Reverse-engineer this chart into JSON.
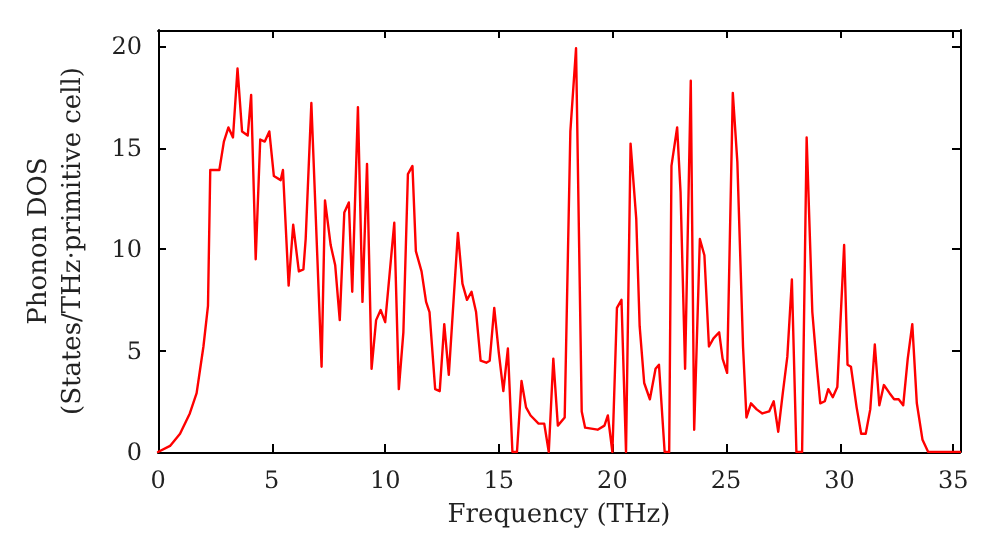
{
  "chart_data": {
    "type": "line",
    "xlabel": "Frequency (THz)",
    "ylabel": "Phonon DOS\n(States/THz·primitive cell)",
    "xlim": [
      0,
      35.3
    ],
    "xticks": [
      0,
      5,
      10,
      15,
      20,
      25,
      30,
      35
    ],
    "ylim": [
      0,
      20.8
    ],
    "yticks": [
      0,
      5,
      10,
      15,
      20
    ],
    "grid": false,
    "marker": "none",
    "line_style": "solid",
    "series": [
      {
        "color": "#ff0000",
        "x": [
          0,
          0.53,
          0.97,
          1.4,
          1.7,
          2.0,
          2.2,
          2.3,
          2.7,
          2.9,
          3.1,
          3.3,
          3.5,
          3.7,
          3.95,
          4.1,
          4.3,
          4.5,
          4.7,
          4.9,
          5.1,
          5.4,
          5.5,
          5.75,
          5.95,
          6.2,
          6.4,
          6.5,
          6.75,
          7.2,
          7.35,
          7.6,
          7.8,
          8.0,
          8.2,
          8.4,
          8.55,
          8.8,
          9.0,
          9.2,
          9.4,
          9.6,
          9.8,
          10.0,
          10.4,
          10.6,
          10.8,
          11.0,
          11.2,
          11.35,
          11.6,
          11.8,
          11.95,
          12.2,
          12.4,
          12.6,
          12.8,
          13.2,
          13.4,
          13.6,
          13.8,
          14.0,
          14.2,
          14.45,
          14.6,
          14.8,
          15.0,
          15.2,
          15.4,
          15.6,
          15.8,
          16.0,
          16.2,
          16.4,
          16.75,
          17.0,
          17.2,
          17.4,
          17.6,
          17.9,
          18.15,
          18.4,
          18.65,
          18.8,
          19.35,
          19.65,
          19.8,
          20.0,
          20.2,
          20.4,
          20.6,
          20.8,
          21.05,
          21.2,
          21.4,
          21.65,
          21.9,
          22.05,
          22.3,
          22.5,
          22.6,
          22.85,
          23.0,
          23.2,
          23.45,
          23.6,
          23.85,
          24.05,
          24.25,
          24.45,
          24.7,
          24.85,
          25.05,
          25.3,
          25.5,
          25.75,
          25.9,
          26.1,
          26.35,
          26.6,
          26.9,
          27.1,
          27.3,
          27.5,
          27.7,
          27.9,
          28.1,
          28.35,
          28.55,
          28.8,
          29.0,
          29.15,
          29.35,
          29.5,
          29.7,
          29.9,
          30.2,
          30.35,
          30.5,
          30.75,
          30.95,
          31.15,
          31.35,
          31.55,
          31.75,
          31.95,
          32.2,
          32.4,
          32.6,
          32.8,
          33.0,
          33.2,
          33.4,
          33.65,
          33.9,
          35.3
        ],
        "values": [
          0,
          0.3,
          0.9,
          1.9,
          2.9,
          5.2,
          7.2,
          13.9,
          13.9,
          15.3,
          16.0,
          15.5,
          18.9,
          15.8,
          15.6,
          17.6,
          9.5,
          15.4,
          15.3,
          15.8,
          13.6,
          13.4,
          13.9,
          8.2,
          11.2,
          8.9,
          9.0,
          10.5,
          17.2,
          4.2,
          12.4,
          10.2,
          9.2,
          6.5,
          11.8,
          12.3,
          7.9,
          17.0,
          7.4,
          14.2,
          4.1,
          6.5,
          7.0,
          6.4,
          11.3,
          3.1,
          5.9,
          13.7,
          14.1,
          9.9,
          8.9,
          7.4,
          6.9,
          3.1,
          3.0,
          6.3,
          3.8,
          10.8,
          8.3,
          7.5,
          7.9,
          6.9,
          4.5,
          4.4,
          4.5,
          7.1,
          4.9,
          3.0,
          5.1,
          0,
          0,
          3.5,
          2.2,
          1.8,
          1.4,
          1.4,
          0,
          4.6,
          1.3,
          1.7,
          15.8,
          19.9,
          2.0,
          1.2,
          1.1,
          1.3,
          1.8,
          0,
          7.1,
          7.5,
          0,
          15.2,
          11.5,
          6.2,
          3.4,
          2.6,
          4.1,
          4.3,
          0,
          0,
          14.1,
          16.0,
          12.8,
          4.1,
          18.3,
          1.1,
          10.5,
          9.7,
          5.2,
          5.6,
          5.9,
          4.6,
          3.9,
          17.7,
          14.3,
          5.2,
          1.7,
          2.4,
          2.1,
          1.9,
          2.0,
          2.5,
          1.0,
          2.9,
          4.7,
          8.5,
          0,
          0,
          15.5,
          6.9,
          4.2,
          2.4,
          2.5,
          3.1,
          2.7,
          3.2,
          10.2,
          4.3,
          4.2,
          2.2,
          0.9,
          0.9,
          2.1,
          5.3,
          2.3,
          3.3,
          2.9,
          2.6,
          2.6,
          2.3,
          4.6,
          6.3,
          2.4,
          0.6,
          0,
          0
        ]
      }
    ]
  }
}
